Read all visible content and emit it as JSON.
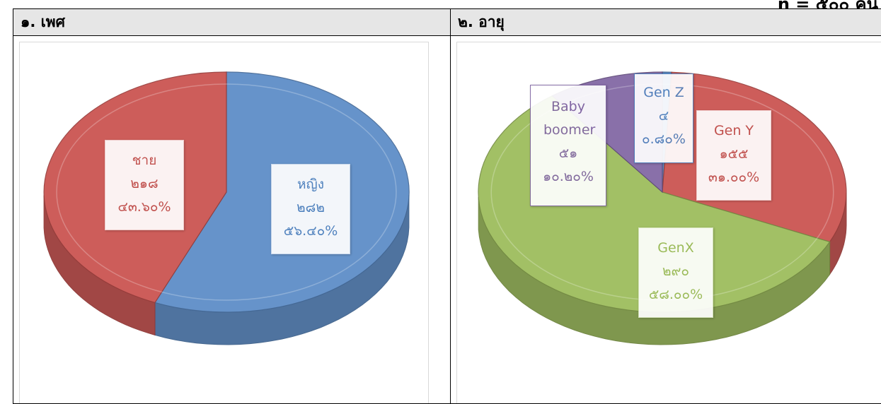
{
  "top_note": "n = ๕๐๐ คน",
  "chart_data": [
    {
      "type": "pie",
      "title": "๑. เพศ",
      "slices": [
        {
          "name": "หญิง",
          "count": "๒๘๒",
          "percent_text": "๕๖.๔๐%",
          "value": 56.4,
          "color": "#5a8ac6",
          "label_color": "#4f81bd"
        },
        {
          "name": "ชาย",
          "count": "๒๑๘",
          "percent_text": "๔๓.๖๐%",
          "value": 43.6,
          "color": "#c9504d",
          "label_color": "#c0504d"
        }
      ]
    },
    {
      "type": "pie",
      "title": "๒. อายุ",
      "slices": [
        {
          "name": "Gen Z",
          "count": "๔",
          "percent_text": "๐.๘๐%",
          "value": 0.8,
          "color": "#4f81bd",
          "label_color": "#4f81bd"
        },
        {
          "name": "Gen Y",
          "count": "๑๕๕",
          "percent_text": "๓๑.๐๐%",
          "value": 31.0,
          "color": "#c9504d",
          "label_color": "#c0504d"
        },
        {
          "name": "GenX",
          "count": "๒๙๐",
          "percent_text": "๕๘.๐๐%",
          "value": 58.0,
          "color": "#9bbb59",
          "label_color": "#9bbb59"
        },
        {
          "name": "Baby boomer",
          "count": "๕๑",
          "percent_text": "๑๐.๒๐%",
          "value": 10.2,
          "color": "#8064a2",
          "label_color": "#8064a2"
        }
      ]
    }
  ]
}
